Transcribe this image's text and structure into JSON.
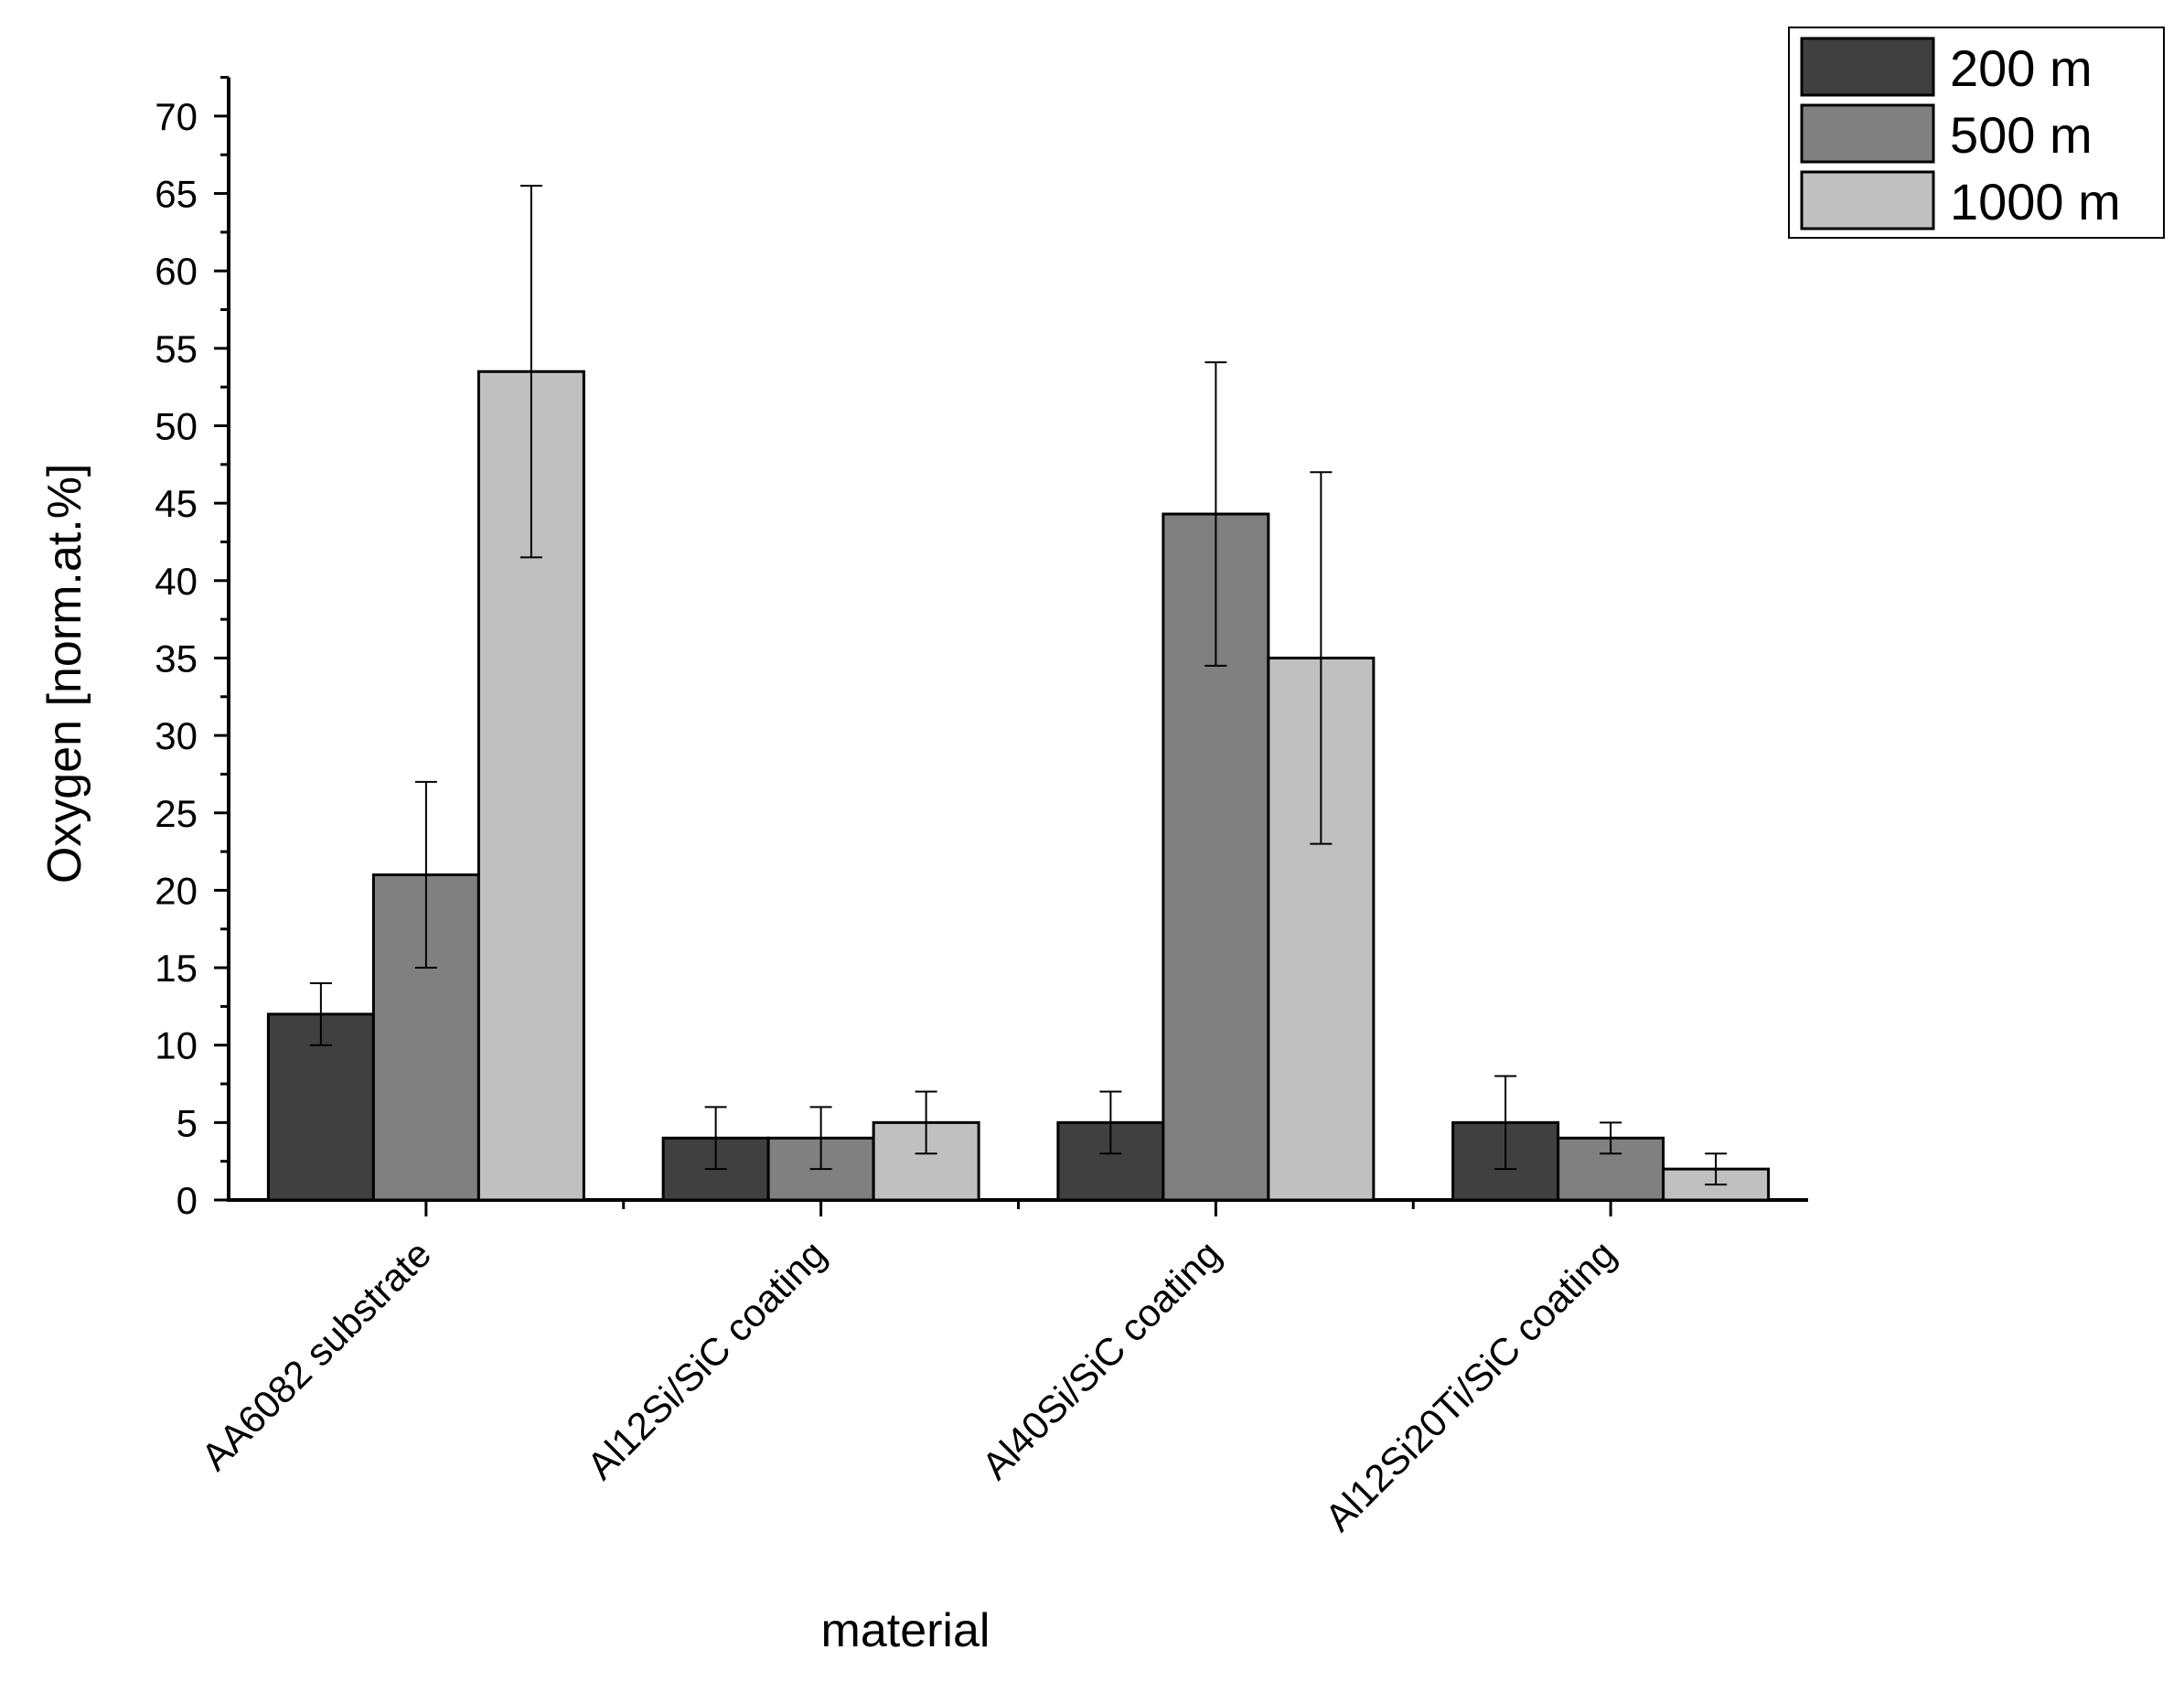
{
  "chart_data": {
    "type": "bar",
    "title": "",
    "xlabel": "material",
    "ylabel": "Oxygen [norm.at.%]",
    "ylim": [
      0,
      72
    ],
    "y_ticks": [
      0,
      5,
      10,
      15,
      20,
      25,
      30,
      35,
      40,
      45,
      50,
      55,
      60,
      65,
      70
    ],
    "y_tick_labels": [
      "0",
      "5",
      "10",
      "15",
      "20",
      "25",
      "30",
      "35",
      "40",
      "45",
      "50",
      "55",
      "60",
      "65",
      "70"
    ],
    "categories": [
      "AA6082 substrate",
      "Al12Si/SiC coating",
      "Al40Si/SiC coating",
      "Al12Si20Ti/SiC coating"
    ],
    "series": [
      {
        "name": "200 m",
        "color": "#404040",
        "values": [
          12,
          4,
          5,
          5
        ],
        "error_low": [
          10,
          2,
          3,
          2
        ],
        "error_high": [
          14,
          6,
          7,
          8
        ]
      },
      {
        "name": "500 m",
        "color": "#808080",
        "values": [
          21,
          4,
          44.3,
          4
        ],
        "error_low": [
          15,
          2,
          34.5,
          3
        ],
        "error_high": [
          27,
          6,
          54.1,
          5
        ]
      },
      {
        "name": "1000 m",
        "color": "#c0c0c0",
        "values": [
          53.5,
          5,
          35,
          2
        ],
        "error_low": [
          41.5,
          3,
          23,
          1
        ],
        "error_high": [
          65.5,
          7,
          47,
          3
        ]
      }
    ],
    "legend_position": "top-right",
    "grid": false
  }
}
